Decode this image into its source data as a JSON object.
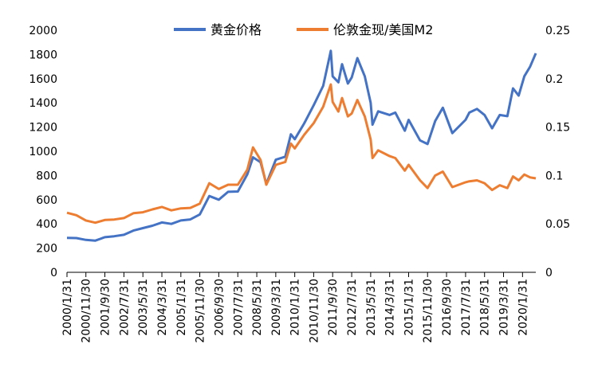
{
  "chart_data": {
    "type": "line",
    "title": "",
    "xlabel": "",
    "ylabel": "",
    "y2label": "",
    "legend_position": "top",
    "grid": false,
    "ylim": [
      0,
      2000
    ],
    "y2lim": [
      0,
      0.25
    ],
    "yticks": [
      "0",
      "200",
      "400",
      "600",
      "800",
      "1000",
      "1200",
      "1400",
      "1600",
      "1800",
      "2000"
    ],
    "y2ticks": [
      "0",
      "0.05",
      "0.1",
      "0.15",
      "0.2",
      "0.25"
    ],
    "xtick_labels": [
      "2000/1/31",
      "2000/11/30",
      "2001/9/30",
      "2002/7/31",
      "2003/5/31",
      "2004/3/31",
      "2005/1/31",
      "2005/11/30",
      "2006/9/30",
      "2007/7/31",
      "2008/5/31",
      "2009/3/31",
      "2010/1/31",
      "2010/11/30",
      "2011/9/30",
      "2012/7/31",
      "2013/5/31",
      "2014/3/31",
      "2015/1/31",
      "2015/11/30",
      "2016/9/30",
      "2017/7/31",
      "2018/5/31",
      "2019/3/31",
      "2020/1/31"
    ],
    "x_range": [
      "2000/1/31",
      "2020/8/31"
    ],
    "series": [
      {
        "name": "黄金价格",
        "axis": "left",
        "color": "#4472C4",
        "points": [
          [
            "2000/1/31",
            285
          ],
          [
            "2000/6/30",
            283
          ],
          [
            "2000/11/30",
            268
          ],
          [
            "2001/4/30",
            262
          ],
          [
            "2001/9/30",
            290
          ],
          [
            "2002/2/28",
            298
          ],
          [
            "2002/7/31",
            310
          ],
          [
            "2002/12/31",
            345
          ],
          [
            "2003/5/31",
            365
          ],
          [
            "2003/10/31",
            385
          ],
          [
            "2004/3/31",
            412
          ],
          [
            "2004/8/31",
            400
          ],
          [
            "2005/1/31",
            428
          ],
          [
            "2005/6/30",
            437
          ],
          [
            "2005/11/30",
            478
          ],
          [
            "2006/4/30",
            630
          ],
          [
            "2006/9/30",
            600
          ],
          [
            "2007/2/28",
            665
          ],
          [
            "2007/7/31",
            668
          ],
          [
            "2007/12/31",
            810
          ],
          [
            "2008/3/31",
            950
          ],
          [
            "2008/7/31",
            910
          ],
          [
            "2008/10/31",
            730
          ],
          [
            "2009/3/31",
            930
          ],
          [
            "2009/8/31",
            955
          ],
          [
            "2009/11/30",
            1140
          ],
          [
            "2010/1/31",
            1100
          ],
          [
            "2010/6/30",
            1230
          ],
          [
            "2010/11/30",
            1380
          ],
          [
            "2011/4/30",
            1540
          ],
          [
            "2011/8/31",
            1830
          ],
          [
            "2011/9/30",
            1620
          ],
          [
            "2011/12/31",
            1570
          ],
          [
            "2012/2/29",
            1720
          ],
          [
            "2012/5/31",
            1560
          ],
          [
            "2012/7/31",
            1610
          ],
          [
            "2012/10/31",
            1770
          ],
          [
            "2013/2/28",
            1620
          ],
          [
            "2013/5/31",
            1400
          ],
          [
            "2013/6/30",
            1220
          ],
          [
            "2013/9/30",
            1330
          ],
          [
            "2014/3/31",
            1300
          ],
          [
            "2014/6/30",
            1320
          ],
          [
            "2014/11/30",
            1170
          ],
          [
            "2015/1/31",
            1260
          ],
          [
            "2015/7/31",
            1090
          ],
          [
            "2015/11/30",
            1060
          ],
          [
            "2016/3/31",
            1250
          ],
          [
            "2016/7/31",
            1360
          ],
          [
            "2016/12/31",
            1150
          ],
          [
            "2017/7/31",
            1260
          ],
          [
            "2017/9/30",
            1320
          ],
          [
            "2018/1/31",
            1350
          ],
          [
            "2018/5/31",
            1300
          ],
          [
            "2018/9/30",
            1190
          ],
          [
            "2019/1/31",
            1300
          ],
          [
            "2019/5/31",
            1290
          ],
          [
            "2019/8/31",
            1520
          ],
          [
            "2019/11/30",
            1460
          ],
          [
            "2020/2/29",
            1620
          ],
          [
            "2020/5/31",
            1700
          ],
          [
            "2020/8/31",
            1810
          ]
        ]
      },
      {
        "name": "伦敦金现/美国M2",
        "axis": "right",
        "color": "#ED7D31",
        "points": [
          [
            "2000/1/31",
            0.0615
          ],
          [
            "2000/6/30",
            0.059
          ],
          [
            "2000/11/30",
            0.0535
          ],
          [
            "2001/4/30",
            0.0512
          ],
          [
            "2001/9/30",
            0.054
          ],
          [
            "2002/2/28",
            0.0545
          ],
          [
            "2002/7/31",
            0.056
          ],
          [
            "2002/12/31",
            0.061
          ],
          [
            "2003/5/31",
            0.062
          ],
          [
            "2003/10/31",
            0.065
          ],
          [
            "2004/3/31",
            0.0675
          ],
          [
            "2004/8/31",
            0.064
          ],
          [
            "2005/1/31",
            0.066
          ],
          [
            "2005/6/30",
            0.0665
          ],
          [
            "2005/11/30",
            0.071
          ],
          [
            "2006/4/30",
            0.092
          ],
          [
            "2006/9/30",
            0.086
          ],
          [
            "2007/2/28",
            0.0905
          ],
          [
            "2007/7/31",
            0.0905
          ],
          [
            "2007/12/31",
            0.106
          ],
          [
            "2008/3/31",
            0.129
          ],
          [
            "2008/7/31",
            0.116
          ],
          [
            "2008/10/31",
            0.0905
          ],
          [
            "2009/3/31",
            0.111
          ],
          [
            "2009/8/31",
            0.114
          ],
          [
            "2009/11/30",
            0.133
          ],
          [
            "2010/1/31",
            0.128
          ],
          [
            "2010/6/30",
            0.142
          ],
          [
            "2010/11/30",
            0.154
          ],
          [
            "2011/4/30",
            0.171
          ],
          [
            "2011/8/31",
            0.194
          ],
          [
            "2011/9/30",
            0.176
          ],
          [
            "2011/12/31",
            0.166
          ],
          [
            "2012/2/29",
            0.18
          ],
          [
            "2012/5/31",
            0.161
          ],
          [
            "2012/7/31",
            0.164
          ],
          [
            "2012/10/31",
            0.178
          ],
          [
            "2013/2/28",
            0.161
          ],
          [
            "2013/5/31",
            0.137
          ],
          [
            "2013/6/30",
            0.118
          ],
          [
            "2013/9/30",
            0.126
          ],
          [
            "2014/3/31",
            0.12
          ],
          [
            "2014/6/30",
            0.118
          ],
          [
            "2014/11/30",
            0.105
          ],
          [
            "2015/1/31",
            0.111
          ],
          [
            "2015/7/31",
            0.095
          ],
          [
            "2015/11/30",
            0.087
          ],
          [
            "2016/3/31",
            0.1
          ],
          [
            "2016/7/31",
            0.104
          ],
          [
            "2016/12/31",
            0.088
          ],
          [
            "2017/7/31",
            0.093
          ],
          [
            "2017/9/30",
            0.094
          ],
          [
            "2018/1/31",
            0.095
          ],
          [
            "2018/5/31",
            0.092
          ],
          [
            "2018/9/30",
            0.085
          ],
          [
            "2019/1/31",
            0.09
          ],
          [
            "2019/5/31",
            0.087
          ],
          [
            "2019/8/31",
            0.099
          ],
          [
            "2019/11/30",
            0.095
          ],
          [
            "2020/2/29",
            0.101
          ],
          [
            "2020/5/31",
            0.098
          ],
          [
            "2020/8/31",
            0.097
          ]
        ]
      }
    ]
  }
}
